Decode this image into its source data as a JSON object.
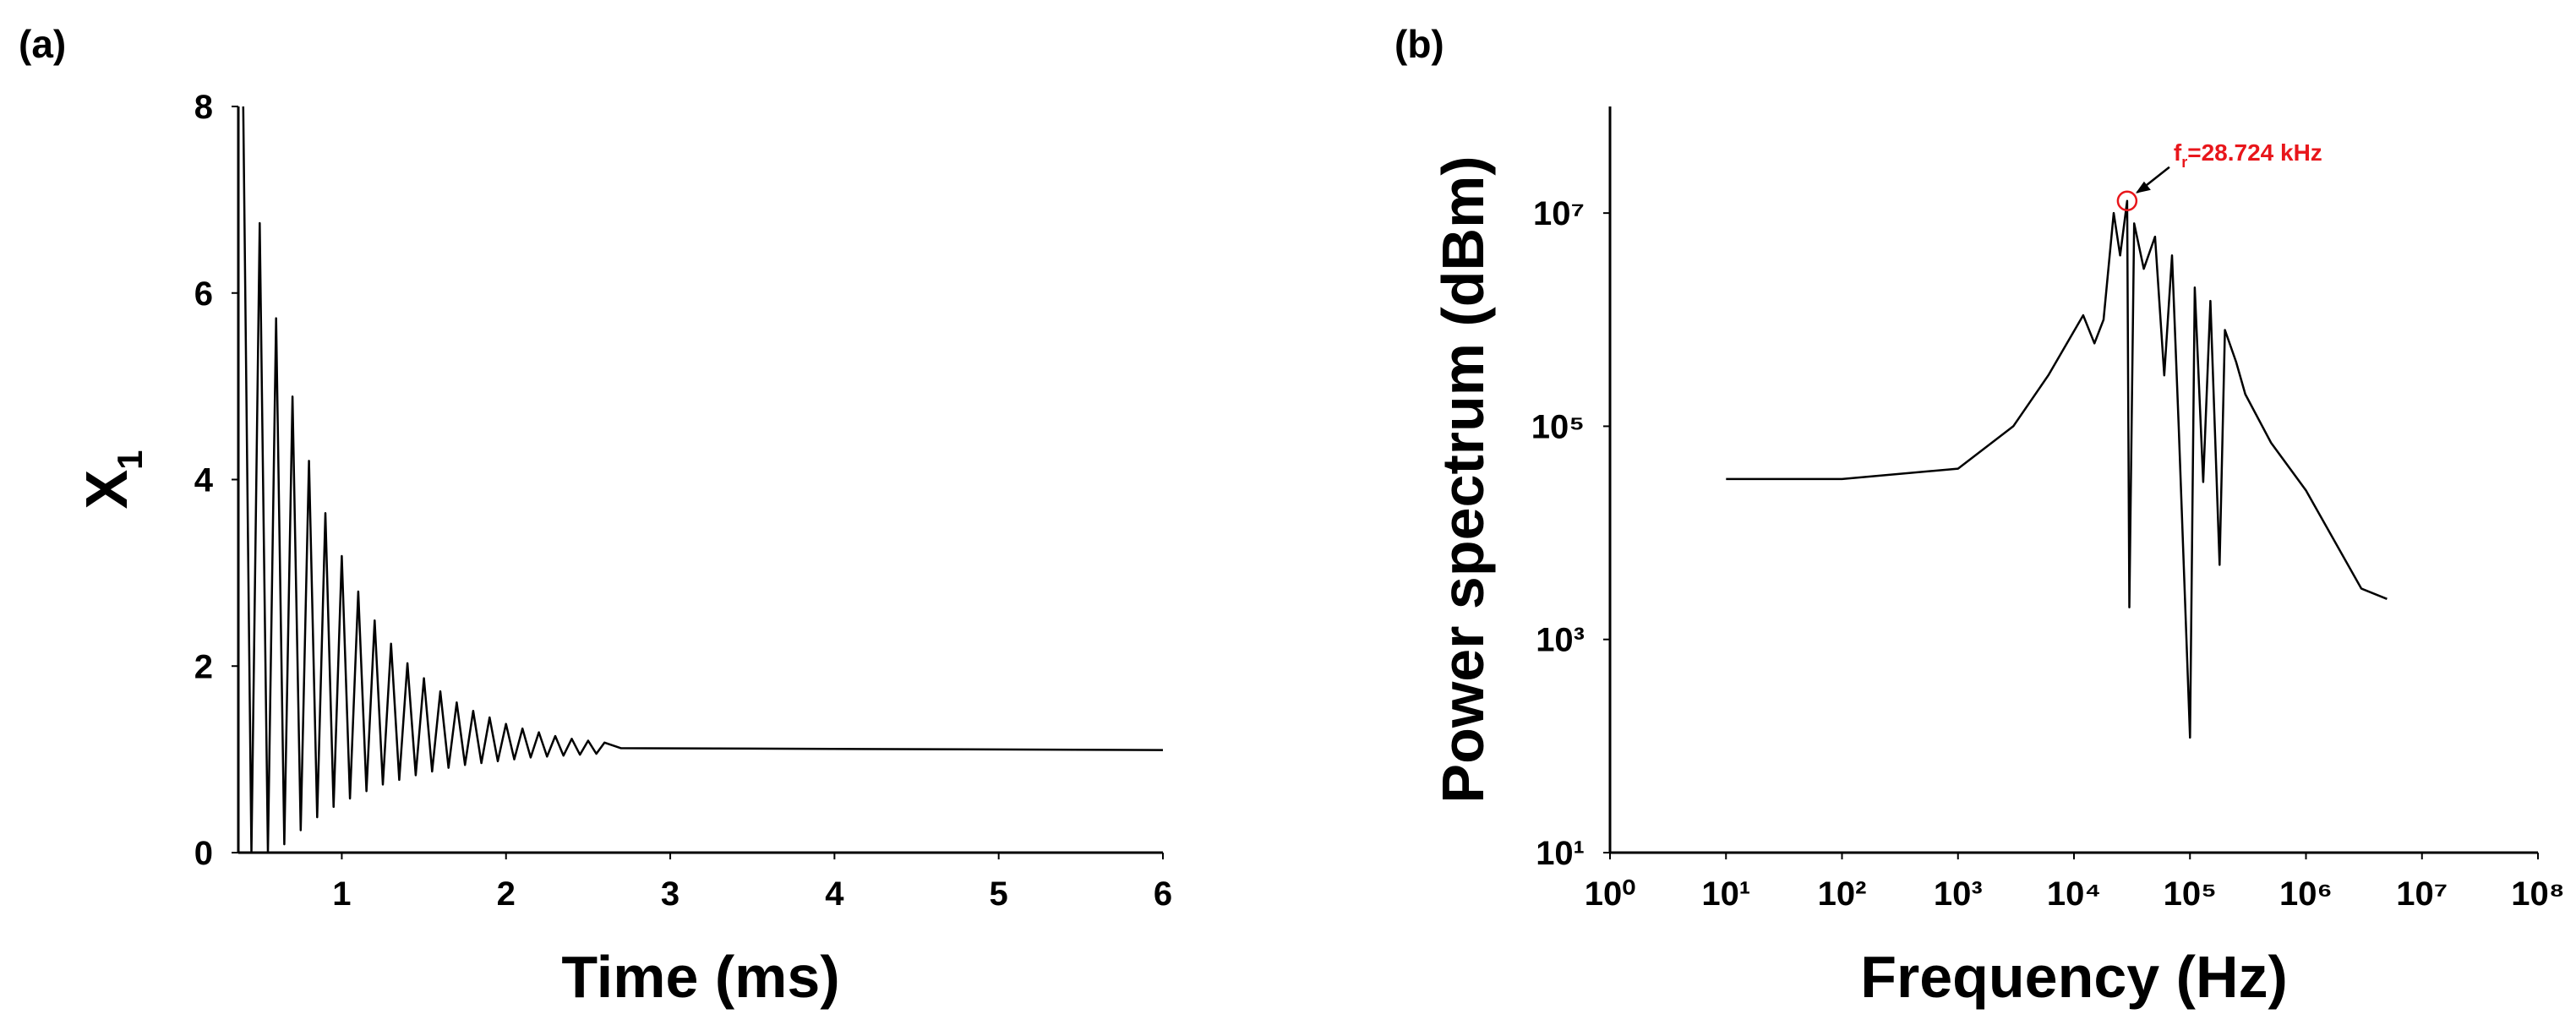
{
  "chart_data": [
    {
      "type": "line",
      "panel_label": "(a)",
      "xlabel": "Time (ms)",
      "ylabel": {
        "main": "X",
        "sub": "1"
      },
      "xlim": [
        0.37,
        6
      ],
      "xticks": [
        1,
        2,
        3,
        4,
        5,
        6
      ],
      "ylim": [
        0,
        8
      ],
      "yticks": [
        0,
        2,
        4,
        6,
        8
      ],
      "grid": false,
      "log": false,
      "series": [
        {
          "color": "#000000",
          "x": [
            0.4,
            0.45,
            0.5,
            0.55,
            0.6,
            0.65,
            0.7,
            0.75,
            0.8,
            0.85,
            0.9,
            0.95,
            1.0,
            1.05,
            1.1,
            1.15,
            1.2,
            1.25,
            1.3,
            1.35,
            1.4,
            1.45,
            1.5,
            1.55,
            1.6,
            1.65,
            1.7,
            1.75,
            1.8,
            1.85,
            1.9,
            1.95,
            2.0,
            2.05,
            2.1,
            2.15,
            2.2,
            2.25,
            2.3,
            2.35,
            2.4,
            2.45,
            2.5,
            2.55,
            2.6,
            2.7,
            6
          ],
          "values": [
            8.0,
            0,
            6.75,
            0,
            5.73,
            0.09,
            4.89,
            0.24,
            4.2,
            0.38,
            3.64,
            0.49,
            3.18,
            0.58,
            2.8,
            0.66,
            2.49,
            0.73,
            2.24,
            0.78,
            2.03,
            0.83,
            1.87,
            0.87,
            1.73,
            0.91,
            1.61,
            0.94,
            1.52,
            0.96,
            1.45,
            0.98,
            1.38,
            1.0,
            1.33,
            1.02,
            1.29,
            1.03,
            1.25,
            1.04,
            1.22,
            1.05,
            1.2,
            1.06,
            1.18,
            1.12,
            1.1
          ]
        }
      ]
    },
    {
      "type": "line",
      "panel_label": "(b)",
      "xlabel": "Frequency (Hz)",
      "ylabel": {
        "main": "Power spectrum (dBm)"
      },
      "xlim": [
        1,
        100000000
      ],
      "xticks": [
        {
          "value": 1,
          "label": "10⁰"
        },
        {
          "value": 10,
          "label": "10¹"
        },
        {
          "value": 100,
          "label": "10²"
        },
        {
          "value": 1000,
          "label": "10³"
        },
        {
          "value": 10000,
          "label": "10⁴"
        },
        {
          "value": 100000,
          "label": "10⁵"
        },
        {
          "value": 1000000,
          "label": "10⁶"
        },
        {
          "value": 10000000,
          "label": "10⁷"
        },
        {
          "value": 100000000,
          "label": "10⁸"
        }
      ],
      "ylim": [
        10,
        100000000
      ],
      "yticks": [
        {
          "value": 10,
          "label": "10¹"
        },
        {
          "value": 1000,
          "label": "10³"
        },
        {
          "value": 100000,
          "label": "10⁵"
        },
        {
          "value": 10000000,
          "label": "10⁷"
        }
      ],
      "grid": false,
      "log": true,
      "series": [
        {
          "color": "#000000",
          "x": [
            10,
            100,
            1000,
            3000,
            6000,
            12000,
            15000,
            18000,
            22000,
            25000,
            28724,
            30000,
            33000,
            40000,
            50000,
            60000,
            70000,
            80000,
            100000,
            110000,
            130000,
            150000,
            180000,
            200000,
            250000,
            300000,
            500000,
            1000000,
            3000000,
            5000000
          ],
          "values": [
            32000,
            32000,
            40000,
            100000,
            300000,
            1100000,
            600000,
            1000000,
            10000000,
            4000000,
            13000000,
            2000,
            8000000,
            3000000,
            6000000,
            300000,
            4000000,
            100000,
            120,
            2000000,
            30000,
            1500000,
            5000,
            800000,
            400000,
            200000,
            70000,
            25000,
            3000,
            2400
          ]
        }
      ],
      "annotation": {
        "x": 28724,
        "y": 13000000,
        "main": "f",
        "sub": "r",
        "rest": "=28.724 kHz",
        "color": "#e8161b"
      }
    }
  ]
}
